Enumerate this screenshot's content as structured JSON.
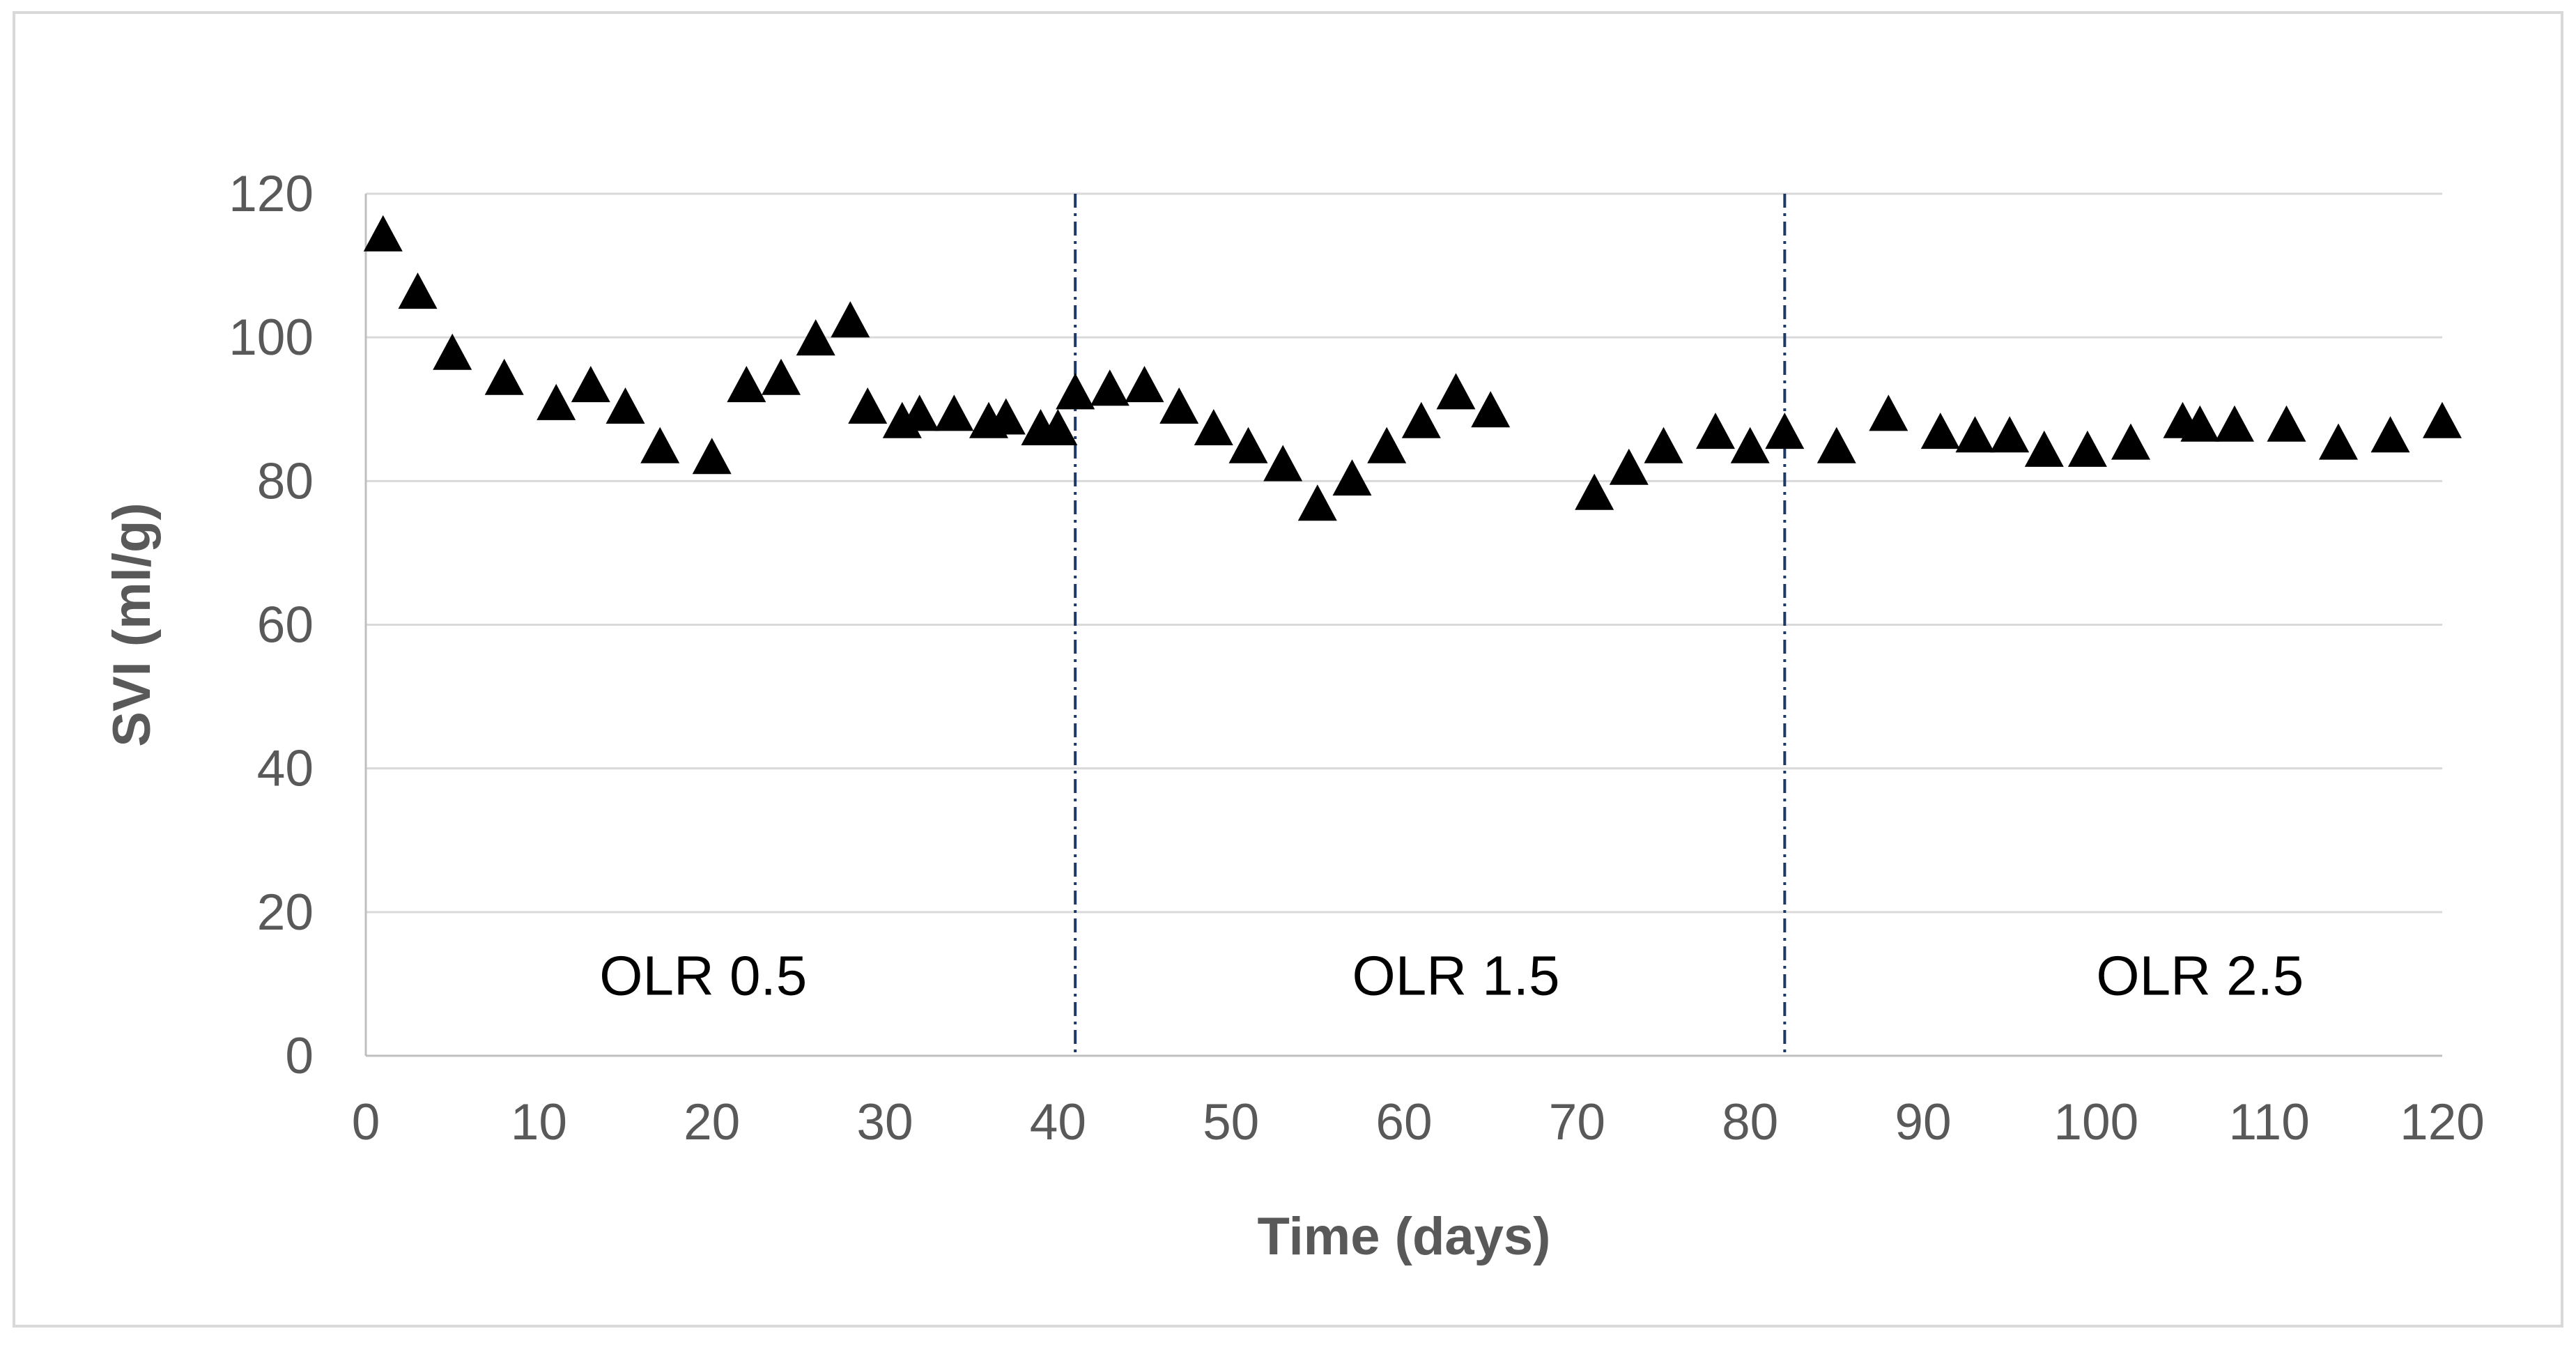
{
  "chart_data": {
    "type": "scatter",
    "title": "",
    "xlabel": "Time (days)",
    "ylabel": "SVI (ml/g)",
    "xlim": [
      0,
      120
    ],
    "ylim": [
      0,
      120
    ],
    "x_ticks": [
      0,
      10,
      20,
      30,
      40,
      50,
      60,
      70,
      80,
      90,
      100,
      110,
      120
    ],
    "y_ticks": [
      0,
      20,
      40,
      60,
      80,
      100,
      120
    ],
    "grid": "horizontal",
    "legend": "none",
    "marker": "triangle",
    "marker_color": "#000000",
    "dividers": [
      41,
      82
    ],
    "regions": [
      {
        "label": "OLR 0.5",
        "x": 19.5
      },
      {
        "label": "OLR 1.5",
        "x": 63
      },
      {
        "label": "OLR 2.5",
        "x": 106
      }
    ],
    "series": [
      {
        "points": [
          [
            1,
            114
          ],
          [
            3,
            106
          ],
          [
            5,
            97.5
          ],
          [
            8,
            94
          ],
          [
            11,
            90.5
          ],
          [
            13,
            93
          ],
          [
            15,
            90
          ],
          [
            17,
            84.5
          ],
          [
            20,
            83
          ],
          [
            22,
            93
          ],
          [
            24,
            94
          ],
          [
            26,
            99.5
          ],
          [
            28,
            102
          ],
          [
            29,
            90
          ],
          [
            31,
            88
          ],
          [
            32,
            89
          ],
          [
            34,
            89
          ],
          [
            36,
            88
          ],
          [
            37,
            88.5
          ],
          [
            39,
            87
          ],
          [
            40,
            87
          ],
          [
            41,
            92
          ],
          [
            43,
            92.5
          ],
          [
            45,
            93
          ],
          [
            47,
            90
          ],
          [
            49,
            87
          ],
          [
            51,
            84.5
          ],
          [
            53,
            82
          ],
          [
            55,
            76.5
          ],
          [
            57,
            80
          ],
          [
            59,
            84.5
          ],
          [
            61,
            88
          ],
          [
            63,
            92
          ],
          [
            65,
            89.5
          ],
          [
            71,
            78
          ],
          [
            73,
            81.5
          ],
          [
            75,
            84.5
          ],
          [
            78,
            86.5
          ],
          [
            80,
            84.5
          ],
          [
            82,
            86.5
          ],
          [
            85,
            84.5
          ],
          [
            88,
            89
          ],
          [
            91,
            86.5
          ],
          [
            93,
            86
          ],
          [
            95,
            86
          ],
          [
            97,
            84
          ],
          [
            99.5,
            84
          ],
          [
            102,
            85
          ],
          [
            105,
            88
          ],
          [
            106,
            87.5
          ],
          [
            108,
            87.5
          ],
          [
            111,
            87.5
          ],
          [
            114,
            85
          ],
          [
            117,
            86
          ],
          [
            120,
            88
          ]
        ]
      }
    ]
  }
}
